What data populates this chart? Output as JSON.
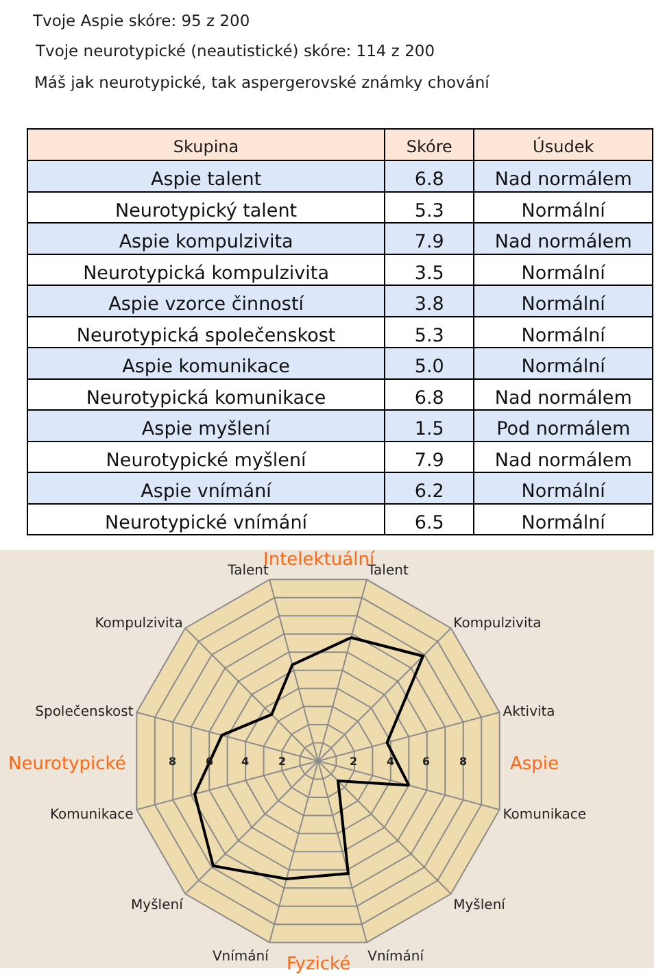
{
  "chart_data": [
    {
      "type": "other",
      "title": "Tvoje Aspie skóre: 95 z 200",
      "subtitle": "Tvoje neurotypické (neautistické) skóre: 114 z 200",
      "annotations": [
        "Máš jak neurotypické, tak aspergerovské známky chování"
      ],
      "ylabel": "Skupina",
      "categories": [
        "Skóre",
        "Úsudek"
      ],
      "y_categories": [
        "Aspie talent",
        "Neurotypický talent",
        "Aspie kompulzivita",
        "Neurotypická kompulzivita",
        "Aspie vzorce činností",
        "Neurotypická společenskost",
        "Aspie komunikace",
        "Neurotypická komunikace",
        "Aspie myšlení",
        "Neurotypické myšlení",
        "Aspie vnímání",
        "Neurotypické vnímání"
      ],
      "cell_labels": [
        [
          "6.8",
          "Nad normálem"
        ],
        [
          "5.3",
          "Normální"
        ],
        [
          "7.9",
          "Nad normálem"
        ],
        [
          "3.5",
          "Normální"
        ],
        [
          "3.8",
          "Normální"
        ],
        [
          "5.3",
          "Normální"
        ],
        [
          "5.0",
          "Normální"
        ],
        [
          "6.8",
          "Nad normálem"
        ],
        [
          "1.5",
          "Pod normálem"
        ],
        [
          "7.9",
          "Nad normálem"
        ],
        [
          "6.2",
          "Normální"
        ],
        [
          "6.5",
          "Normální"
        ]
      ]
    },
    {
      "type": "radar",
      "categories": [
        "Talent",
        "Kompulzivita",
        "Aktivita",
        "Komunikace",
        "Myšlení",
        "Vnímání",
        "Vnímání",
        "Myšlení",
        "Komunikace",
        "Společenskost",
        "Kompulzivita",
        "Talent"
      ],
      "series": [
        {
          "color": "#000000",
          "values": [
            6.8,
            7.9,
            3.8,
            5.0,
            1.5,
            6.2,
            6.5,
            7.9,
            6.8,
            5.3,
            3.5,
            5.3
          ]
        }
      ],
      "ylim": [
        0,
        10
      ],
      "yticks": [
        8,
        6,
        4,
        2,
        2,
        4,
        6,
        8
      ],
      "annotations": [
        "Intelektuální",
        "Aspie",
        "Fyzické",
        "Neurotypické"
      ],
      "grid": true
    }
  ]
}
